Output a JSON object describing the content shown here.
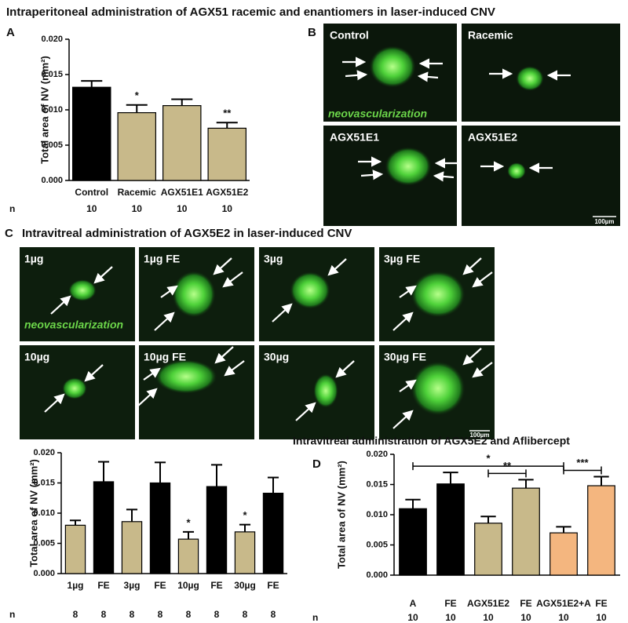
{
  "title": "Intraperitoneal administration of AGX51 racemic and enantiomers in laser-induced CNV",
  "panel_b": {
    "letter": "B",
    "images": [
      "Control",
      "Racemic",
      "AGX51E1",
      "AGX51E2"
    ],
    "annotation": "neovascularization",
    "scale_bar": "100µm"
  },
  "panel_c": {
    "letter": "C",
    "title": "Intravitreal administration of AGX5E2 in laser-induced CNV",
    "images": [
      "1µg",
      "1µg FE",
      "3µg",
      "3µg FE",
      "10µg",
      "10µg FE",
      "30µg",
      "30µg FE"
    ],
    "annotation": "neovascularization",
    "scale_bar": "100µm"
  },
  "chart_data": [
    {
      "type": "bar",
      "letter": "A",
      "y_label": "Total area of NV (mm²)",
      "categories": [
        "Control",
        "Racemic",
        "AGX51E1",
        "AGX51E2"
      ],
      "values": [
        0.0132,
        0.0096,
        0.0106,
        0.0074
      ],
      "errors": [
        0.0009,
        0.0011,
        0.0009,
        0.0008
      ],
      "colors": [
        "#000000",
        "#c8b98a",
        "#c8b98a",
        "#c8b98a"
      ],
      "significance": [
        null,
        "*",
        null,
        "**"
      ],
      "n_label": "n",
      "n_values": [
        10,
        10,
        10,
        10
      ],
      "ylim": [
        0,
        0.02
      ],
      "yticks": [
        {
          "value": 0,
          "label": "0.000"
        },
        {
          "value": 0.005,
          "label": "0.005"
        },
        {
          "value": 0.01,
          "label": "0.010"
        },
        {
          "value": 0.015,
          "label": "0.015"
        },
        {
          "value": 0.02,
          "label": "0.020"
        }
      ]
    },
    {
      "type": "bar",
      "y_label": "Total area of NV (mm²)",
      "categories": [
        "1µg",
        "FE",
        "3µg",
        "FE",
        "10µg",
        "FE",
        "30µg",
        "FE"
      ],
      "values": [
        0.008,
        0.0152,
        0.0086,
        0.015,
        0.0057,
        0.0144,
        0.0069,
        0.0133
      ],
      "errors": [
        0.0008,
        0.0033,
        0.002,
        0.0034,
        0.0012,
        0.0036,
        0.0012,
        0.0026
      ],
      "colors": [
        "#c8b98a",
        "#000000",
        "#c8b98a",
        "#000000",
        "#c8b98a",
        "#000000",
        "#c8b98a",
        "#000000"
      ],
      "significance": [
        null,
        null,
        null,
        null,
        "*",
        null,
        "*",
        null
      ],
      "n_label": "n",
      "n_values": [
        8,
        8,
        8,
        8,
        8,
        8,
        8,
        8
      ],
      "ylim": [
        0,
        0.02
      ],
      "yticks": [
        {
          "value": 0,
          "label": "0.000"
        },
        {
          "value": 0.005,
          "label": "0.005"
        },
        {
          "value": 0.01,
          "label": "0.010"
        },
        {
          "value": 0.015,
          "label": "0.015"
        },
        {
          "value": 0.02,
          "label": "0.020"
        }
      ]
    },
    {
      "type": "bar",
      "letter": "D",
      "title": "Intravitreal administration of AGX5E2 and Aflibercept",
      "y_label": "Total area of NV (mm²)",
      "categories": [
        "A",
        "FE",
        "AGX51E2",
        "FE",
        "AGX51E2+A",
        "FE"
      ],
      "values": [
        0.011,
        0.0151,
        0.0086,
        0.0144,
        0.007,
        0.0148
      ],
      "errors": [
        0.0015,
        0.0019,
        0.0011,
        0.0014,
        0.001,
        0.0015
      ],
      "colors": [
        "#000000",
        "#000000",
        "#c8b98a",
        "#c8b98a",
        "#f4b67f",
        "#f4b67f"
      ],
      "brackets": [
        {
          "from": 0,
          "to": 4,
          "label": "*"
        },
        {
          "from": 2,
          "to": 3,
          "label": "**"
        },
        {
          "from": 4,
          "to": 5,
          "label": "***"
        }
      ],
      "n_label": "n",
      "n_values": [
        10,
        10,
        10,
        10,
        10,
        10
      ],
      "ylim": [
        0,
        0.02
      ],
      "yticks": [
        {
          "value": 0,
          "label": "0.000"
        },
        {
          "value": 0.005,
          "label": "0.005"
        },
        {
          "value": 0.01,
          "label": "0.010"
        },
        {
          "value": 0.015,
          "label": "0.015"
        },
        {
          "value": 0.02,
          "label": "0.020"
        }
      ]
    }
  ]
}
